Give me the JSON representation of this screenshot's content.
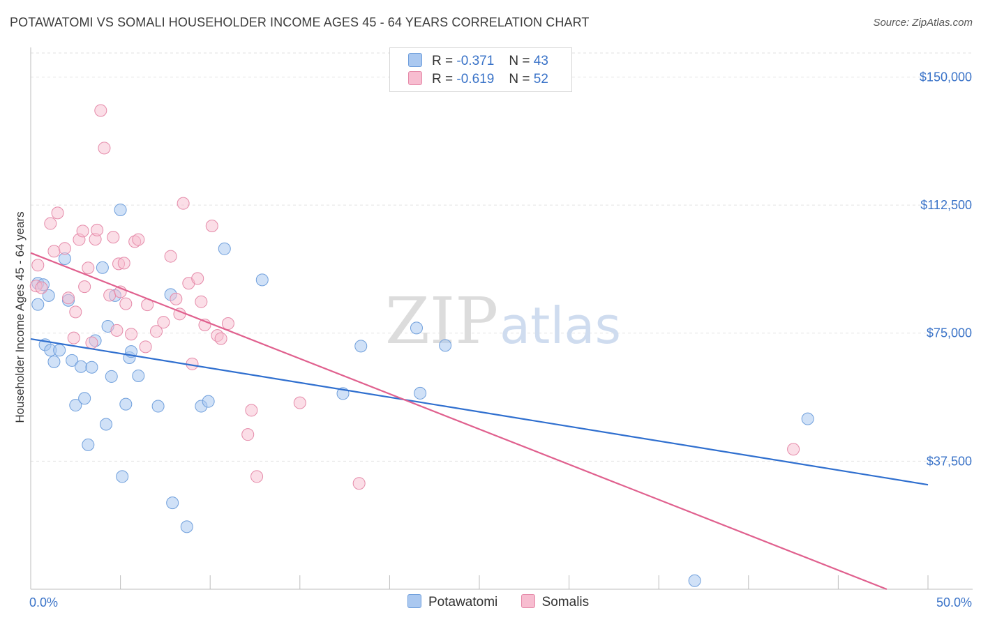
{
  "header": {
    "title": "POTAWATOMI VS SOMALI HOUSEHOLDER INCOME AGES 45 - 64 YEARS CORRELATION CHART",
    "source": "Source: ZipAtlas.com"
  },
  "watermark": {
    "zip": "ZIP",
    "atlas": "atlas"
  },
  "legend": {
    "rows": [
      {
        "r_label": "R =",
        "r_value": "-0.371",
        "n_label": "N =",
        "n_value": "43"
      },
      {
        "r_label": "R =",
        "r_value": "-0.619",
        "n_label": "N =",
        "n_value": "52"
      }
    ]
  },
  "colors": {
    "potawatomi_fill": "#aac8f0",
    "potawatomi_stroke": "#6f9fdc",
    "potawatomi_line": "#2f6fcf",
    "somalis_fill": "#f7bdd0",
    "somalis_stroke": "#e58aa9",
    "somalis_line": "#e0608e",
    "axis_label": "#3a73c8",
    "grid": "#e2e2e2"
  },
  "chart_data": {
    "type": "scatter",
    "xlabel": "",
    "ylabel": "Householder Income Ages 45 - 64 years",
    "xlim": [
      0,
      50
    ],
    "ylim": [
      0,
      155000
    ],
    "x_tick_labels": [
      "0.0%",
      "50.0%"
    ],
    "y_ticks": [
      37500,
      75000,
      112500,
      150000
    ],
    "y_tick_labels": [
      "$37,500",
      "$75,000",
      "$112,500",
      "$150,000"
    ],
    "grid": "horizontal dashed",
    "legend_position": "top-center",
    "series": [
      {
        "name": "Potawatomi",
        "trend": {
          "x": [
            0,
            50
          ],
          "y": [
            73300,
            30600
          ]
        },
        "points": [
          [
            0.4,
            89600
          ],
          [
            0.4,
            83400
          ],
          [
            0.7,
            89200
          ],
          [
            0.8,
            71600
          ],
          [
            1.0,
            86000
          ],
          [
            1.1,
            70000
          ],
          [
            1.3,
            66600
          ],
          [
            1.6,
            70000
          ],
          [
            1.9,
            96800
          ],
          [
            2.1,
            84600
          ],
          [
            2.3,
            67000
          ],
          [
            2.5,
            53900
          ],
          [
            2.8,
            65200
          ],
          [
            3.0,
            55900
          ],
          [
            3.2,
            42300
          ],
          [
            3.4,
            65000
          ],
          [
            3.6,
            72800
          ],
          [
            4.0,
            94200
          ],
          [
            4.2,
            48300
          ],
          [
            4.3,
            77000
          ],
          [
            4.5,
            62300
          ],
          [
            4.7,
            86000
          ],
          [
            5.0,
            111100
          ],
          [
            5.1,
            33000
          ],
          [
            5.3,
            54200
          ],
          [
            5.5,
            67800
          ],
          [
            5.6,
            69600
          ],
          [
            6.0,
            62500
          ],
          [
            7.1,
            53600
          ],
          [
            7.8,
            86300
          ],
          [
            7.9,
            25300
          ],
          [
            8.7,
            18300
          ],
          [
            9.5,
            53600
          ],
          [
            9.9,
            55000
          ],
          [
            10.8,
            99700
          ],
          [
            12.9,
            90600
          ],
          [
            17.4,
            57300
          ],
          [
            18.4,
            71200
          ],
          [
            21.5,
            76500
          ],
          [
            21.7,
            57400
          ],
          [
            23.1,
            71400
          ],
          [
            37.0,
            2500
          ],
          [
            43.3,
            49900
          ]
        ]
      },
      {
        "name": "Somalis",
        "trend": {
          "x": [
            0,
            47.7
          ],
          "y": [
            98500,
            0
          ]
        },
        "points": [
          [
            0.3,
            88800
          ],
          [
            0.4,
            94900
          ],
          [
            0.6,
            88300
          ],
          [
            1.1,
            107100
          ],
          [
            1.3,
            99000
          ],
          [
            1.5,
            110200
          ],
          [
            1.9,
            99800
          ],
          [
            2.1,
            85300
          ],
          [
            2.4,
            73600
          ],
          [
            2.5,
            81200
          ],
          [
            2.7,
            102400
          ],
          [
            2.9,
            104900
          ],
          [
            3.0,
            88600
          ],
          [
            3.2,
            94100
          ],
          [
            3.4,
            72200
          ],
          [
            3.6,
            102500
          ],
          [
            3.7,
            105200
          ],
          [
            3.9,
            140200
          ],
          [
            4.1,
            129200
          ],
          [
            4.4,
            86100
          ],
          [
            4.6,
            103100
          ],
          [
            4.8,
            75800
          ],
          [
            4.9,
            95300
          ],
          [
            5.0,
            87100
          ],
          [
            5.2,
            95500
          ],
          [
            5.3,
            83600
          ],
          [
            5.6,
            74700
          ],
          [
            5.8,
            101800
          ],
          [
            6.0,
            102400
          ],
          [
            6.4,
            71000
          ],
          [
            6.5,
            83300
          ],
          [
            7.0,
            75500
          ],
          [
            7.4,
            78200
          ],
          [
            7.8,
            97500
          ],
          [
            8.1,
            85000
          ],
          [
            8.3,
            80600
          ],
          [
            8.5,
            113000
          ],
          [
            8.8,
            89600
          ],
          [
            9.0,
            66000
          ],
          [
            9.3,
            91000
          ],
          [
            9.5,
            84200
          ],
          [
            9.7,
            77400
          ],
          [
            10.1,
            106400
          ],
          [
            10.4,
            74300
          ],
          [
            10.6,
            73400
          ],
          [
            11.0,
            77800
          ],
          [
            12.1,
            45300
          ],
          [
            12.3,
            52400
          ],
          [
            12.6,
            33000
          ],
          [
            15.0,
            54600
          ],
          [
            18.3,
            31000
          ],
          [
            42.5,
            41000
          ]
        ]
      }
    ]
  },
  "bottom_legend": {
    "items": [
      "Potawatomi",
      "Somalis"
    ]
  }
}
